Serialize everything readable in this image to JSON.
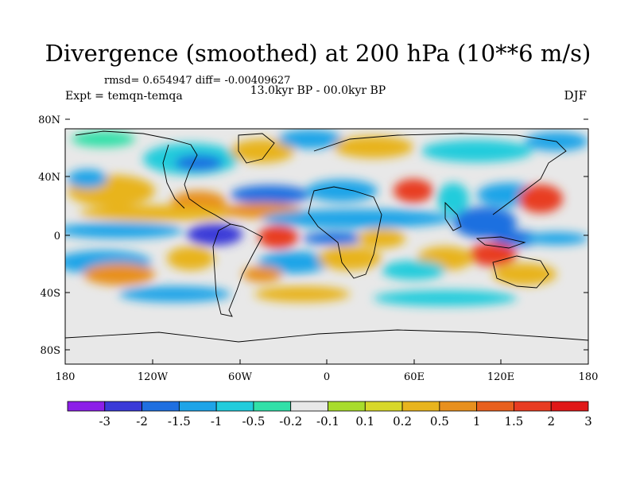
{
  "title": "Divergence (smoothed) at 200 hPa (10**6 m/s)",
  "stats": "rmsd= 0.654947 diff= -0.00409627",
  "period": "13.0kyr BP - 00.0kyr BP",
  "experiment": "Expt = temqn-temqa",
  "season": "DJF",
  "map": {
    "y_ticks": [
      "80N",
      "40N",
      "0",
      "40S",
      "80S"
    ],
    "x_ticks": [
      "180",
      "120W",
      "60W",
      "0",
      "60E",
      "120E",
      "180"
    ]
  },
  "colorbar": {
    "colors": [
      "#8c1fe8",
      "#3a3ad8",
      "#1f6fe0",
      "#1ea4e8",
      "#22ccdc",
      "#31e0a8",
      "#e8e8e8",
      "#a8dc2c",
      "#d8d82a",
      "#e8b41e",
      "#e8901e",
      "#e8601e",
      "#e83c22",
      "#e01818"
    ],
    "labels": [
      "-3",
      "-2",
      "-1.5",
      "-1",
      "-0.5",
      "-0.2",
      "-0.1",
      "0.1",
      "0.2",
      "0.5",
      "1",
      "1.5",
      "2",
      "3"
    ]
  },
  "field_palette": {
    "neutral": "#e8e8e8",
    "pos_weak": "#a8dc2c",
    "pos_mid": "#d8d82a",
    "pos_str": "#e8b41e",
    "pos_strong": "#e8901e",
    "pos_max": "#e83c22",
    "neg_weak": "#31e0a8",
    "neg_mid": "#22ccdc",
    "neg_str": "#1ea4e8",
    "neg_strong": "#1f6fe0",
    "neg_max": "#3a3ad8"
  }
}
